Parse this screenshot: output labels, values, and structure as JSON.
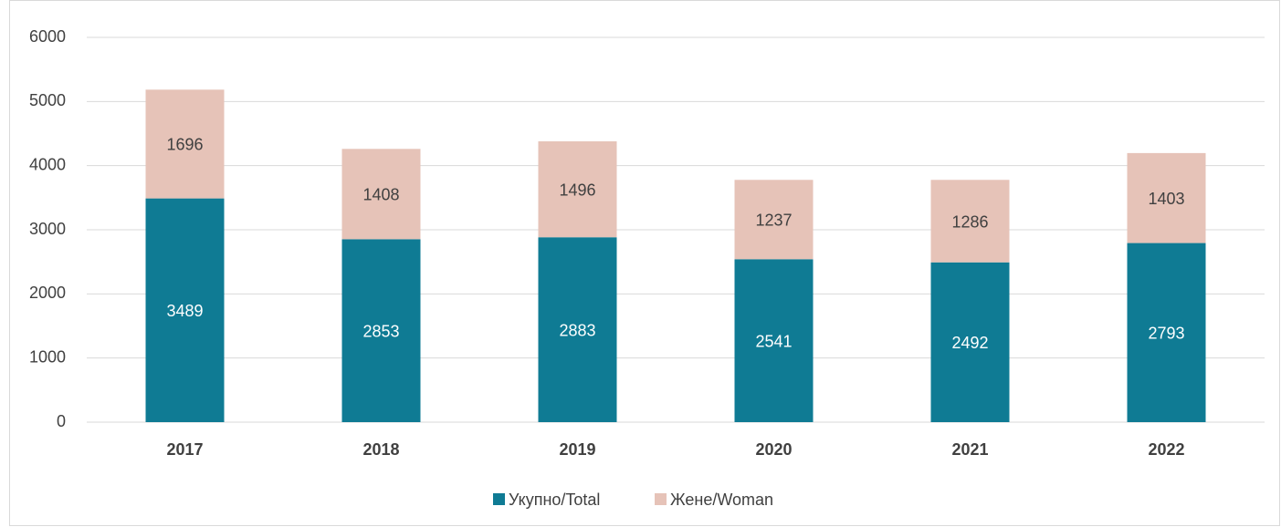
{
  "chart_data": {
    "type": "stacked_bar",
    "categories": [
      "2017",
      "2018",
      "2019",
      "2020",
      "2021",
      "2022"
    ],
    "series": [
      {
        "name": "Укупно/Total",
        "color": "#0f7b94",
        "values": [
          3489,
          2853,
          2883,
          2541,
          2492,
          2793
        ]
      },
      {
        "name": "Жене/Woman",
        "color": "#e6c3b8",
        "values": [
          1696,
          1408,
          1496,
          1237,
          1286,
          1403
        ]
      }
    ],
    "ylim": [
      0,
      6000
    ],
    "yticks": [
      0,
      1000,
      2000,
      3000,
      4000,
      5000,
      6000
    ],
    "grid": true,
    "legend": "bottom"
  }
}
